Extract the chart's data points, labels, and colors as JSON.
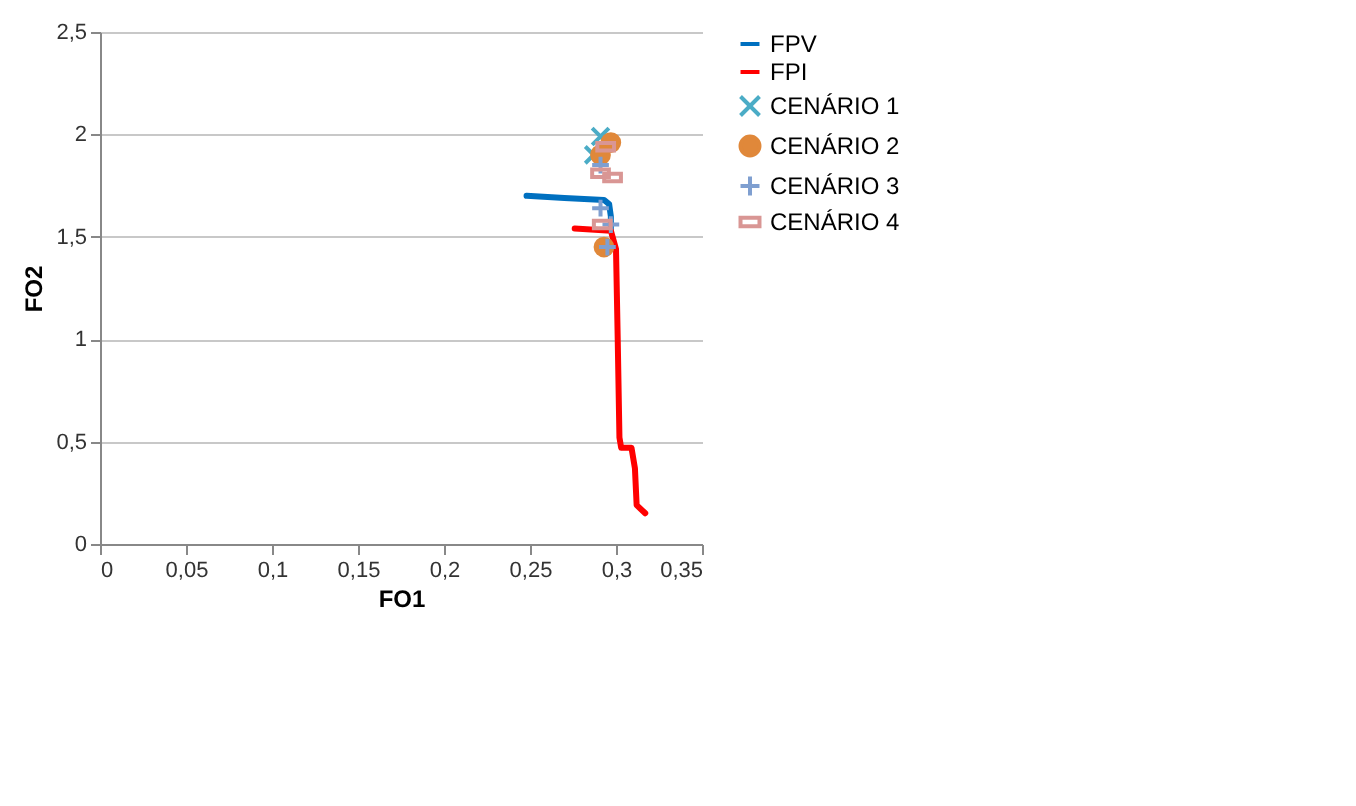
{
  "chart_data": {
    "type": "line",
    "xlabel": "FO1",
    "ylabel": "FO2",
    "xlim": [
      0,
      0.35
    ],
    "ylim": [
      0,
      2.5
    ],
    "xticks": [
      0,
      {
        "value": 0.05,
        "label": "0,05"
      },
      {
        "value": 0.1,
        "label": "0,1"
      },
      {
        "value": 0.15,
        "label": "0,15"
      },
      {
        "value": 0.2,
        "label": "0,2"
      },
      {
        "value": 0.25,
        "label": "0,25"
      },
      {
        "value": 0.3,
        "label": "0,3"
      },
      {
        "value": 0.35,
        "label": "0,35"
      }
    ],
    "yticks": [
      0,
      {
        "value": 0.5,
        "label": "0,5"
      },
      1,
      {
        "value": 1.5,
        "label": "1,5"
      },
      2,
      {
        "value": 2.5,
        "label": "2,5"
      }
    ],
    "grid": "y",
    "legend": "right",
    "series": [
      {
        "name": "FPV",
        "color": "#0070c0",
        "marker": "none",
        "x": [
          0.248,
          0.27,
          0.293,
          0.296,
          0.297,
          0.297
        ],
        "values": [
          1.7,
          1.69,
          1.68,
          1.66,
          1.6,
          1.54
        ]
      },
      {
        "name": "FPI",
        "color": "#ff0000",
        "marker": "none",
        "x": [
          0.276,
          0.297,
          0.3,
          0.301,
          0.302,
          0.303,
          0.309,
          0.311,
          0.312,
          0.317
        ],
        "values": [
          1.54,
          1.53,
          1.44,
          1.0,
          0.52,
          0.47,
          0.47,
          0.37,
          0.19,
          0.15
        ]
      },
      {
        "name": "CENÁRIO 1",
        "type": "scatter",
        "color": "#4bacc6",
        "marker": "cross",
        "x": [
          0.291,
          0.287
        ],
        "values": [
          1.99,
          1.9
        ]
      },
      {
        "name": "CENÁRIO 2",
        "type": "scatter",
        "color": "#e0883a",
        "marker": "circle",
        "x": [
          0.297,
          0.291,
          0.293
        ],
        "values": [
          1.96,
          1.9,
          1.45
        ]
      },
      {
        "name": "CENÁRIO 3",
        "type": "scatter",
        "color": "#7f9fd0",
        "marker": "cross",
        "x": [
          0.291,
          0.291,
          0.297,
          0.295
        ],
        "values": [
          1.85,
          1.64,
          1.56,
          1.45
        ]
      },
      {
        "name": "CENÁRIO 4",
        "type": "scatter",
        "color": "#d99694",
        "marker": "square",
        "x": [
          0.294,
          0.291,
          0.298,
          0.292
        ],
        "values": [
          1.94,
          1.81,
          1.79,
          1.56
        ]
      }
    ]
  }
}
